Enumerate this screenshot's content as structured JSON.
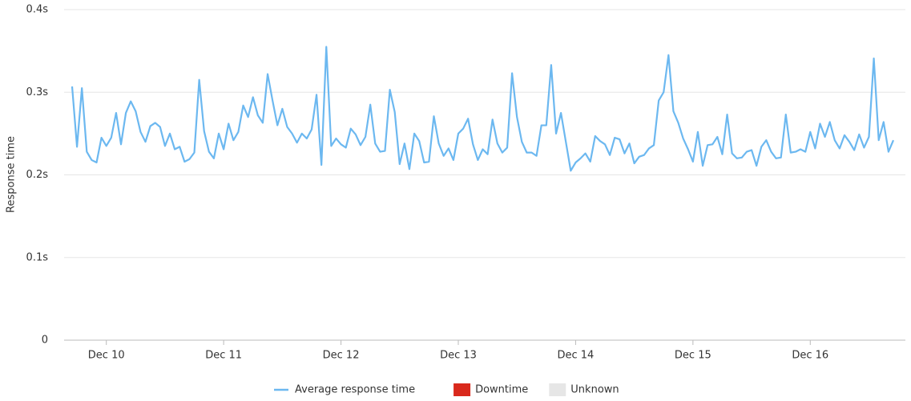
{
  "chart_data": {
    "type": "line",
    "y_label": "Response time",
    "categories": [
      null,
      null,
      null,
      null,
      null,
      null,
      null,
      "Dec 10",
      null,
      null,
      null,
      null,
      null,
      null,
      null,
      null,
      null,
      null,
      null,
      null,
      null,
      null,
      null,
      null,
      null,
      null,
      null,
      null,
      null,
      null,
      null,
      "Dec 11",
      null,
      null,
      null,
      null,
      null,
      null,
      null,
      null,
      null,
      null,
      null,
      null,
      null,
      null,
      null,
      null,
      null,
      null,
      null,
      null,
      null,
      null,
      null,
      "Dec 12",
      null,
      null,
      null,
      null,
      null,
      null,
      null,
      null,
      null,
      null,
      null,
      null,
      null,
      null,
      null,
      null,
      null,
      null,
      null,
      null,
      null,
      null,
      null,
      "Dec 13",
      null,
      null,
      null,
      null,
      null,
      null,
      null,
      null,
      null,
      null,
      null,
      null,
      null,
      null,
      null,
      null,
      null,
      null,
      null,
      null,
      null,
      null,
      null,
      "Dec 14",
      null,
      null,
      null,
      null,
      null,
      null,
      null,
      null,
      null,
      null,
      null,
      null,
      null,
      null,
      null,
      null,
      null,
      null,
      null,
      null,
      null,
      null,
      null,
      "Dec 15",
      null,
      null,
      null,
      null,
      null,
      null,
      null,
      null,
      null,
      null,
      null,
      null,
      null,
      null,
      null,
      null,
      null,
      null,
      null,
      null,
      null,
      null,
      null,
      "Dec 16",
      null,
      null,
      null,
      null,
      null,
      null,
      null,
      null,
      null,
      null,
      null,
      null,
      null,
      null,
      null,
      null,
      null
    ],
    "series": [
      {
        "name": "Average response time",
        "color": "#6cb8f0",
        "values": [
          0.307,
          0.234,
          0.305,
          0.228,
          0.218,
          0.215,
          0.245,
          0.235,
          0.245,
          0.275,
          0.237,
          0.275,
          0.289,
          0.277,
          0.252,
          0.24,
          0.259,
          0.263,
          0.258,
          0.235,
          0.25,
          0.231,
          0.234,
          0.216,
          0.219,
          0.227,
          0.315,
          0.253,
          0.228,
          0.22,
          0.25,
          0.231,
          0.262,
          0.242,
          0.252,
          0.284,
          0.27,
          0.294,
          0.272,
          0.263,
          0.322,
          0.29,
          0.26,
          0.28,
          0.258,
          0.25,
          0.239,
          0.25,
          0.244,
          0.255,
          0.297,
          0.212,
          0.355,
          0.235,
          0.244,
          0.237,
          0.233,
          0.256,
          0.249,
          0.236,
          0.246,
          0.285,
          0.238,
          0.228,
          0.229,
          0.303,
          0.276,
          0.213,
          0.238,
          0.207,
          0.25,
          0.241,
          0.215,
          0.216,
          0.271,
          0.238,
          0.223,
          0.232,
          0.218,
          0.25,
          0.256,
          0.268,
          0.237,
          0.218,
          0.231,
          0.225,
          0.267,
          0.238,
          0.227,
          0.233,
          0.323,
          0.27,
          0.24,
          0.227,
          0.227,
          0.223,
          0.26,
          0.26,
          0.333,
          0.25,
          0.275,
          0.24,
          0.205,
          0.215,
          0.22,
          0.226,
          0.216,
          0.247,
          0.241,
          0.237,
          0.224,
          0.245,
          0.243,
          0.226,
          0.238,
          0.214,
          0.222,
          0.224,
          0.232,
          0.236,
          0.29,
          0.3,
          0.345,
          0.277,
          0.263,
          0.244,
          0.231,
          0.216,
          0.252,
          0.211,
          0.236,
          0.237,
          0.246,
          0.225,
          0.273,
          0.226,
          0.22,
          0.221,
          0.228,
          0.23,
          0.211,
          0.234,
          0.242,
          0.228,
          0.22,
          0.221,
          0.273,
          0.227,
          0.228,
          0.231,
          0.228,
          0.252,
          0.232,
          0.262,
          0.246,
          0.264,
          0.242,
          0.232,
          0.248,
          0.24,
          0.23,
          0.249,
          0.233,
          0.246,
          0.341,
          0.242,
          0.264,
          0.228,
          0.242
        ]
      }
    ],
    "legend_items": [
      {
        "name": "Downtime",
        "color": "#d9291c"
      },
      {
        "name": "Unknown",
        "color": "#e6e6e6"
      }
    ],
    "ylim": [
      0,
      0.4
    ],
    "yticks": [
      0,
      {
        "value": 0.1,
        "label": "0.1s"
      },
      {
        "value": 0.2,
        "label": "0.2s"
      },
      {
        "value": 0.3,
        "label": "0.3s"
      },
      {
        "value": 0.4,
        "label": "0.4s"
      }
    ],
    "grid": true
  }
}
